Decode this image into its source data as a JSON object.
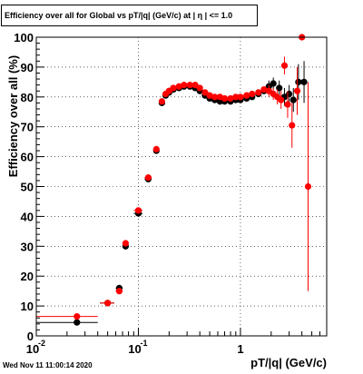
{
  "chart_data": {
    "type": "scatter",
    "title": "Efficiency over all for Global vs pT/|q| (GeV/c) at |  η | <= 1.0",
    "xlabel": "pT/|q| (GeV/c)",
    "ylabel": "Efficiency over all (%)",
    "x_scale": "log",
    "xlim": [
      0.01,
      7
    ],
    "ylim": [
      0,
      100
    ],
    "x_ticks": [
      {
        "value": 0.01,
        "label": "10",
        "exp": "-2"
      },
      {
        "value": 0.1,
        "label": "10",
        "exp": "-1"
      },
      {
        "value": 1,
        "label": "1",
        "exp": ""
      }
    ],
    "y_ticks": [
      0,
      10,
      20,
      30,
      40,
      50,
      60,
      70,
      80,
      90,
      100
    ],
    "grid": true,
    "series": [
      {
        "color": "#000000",
        "points": [
          {
            "x": 0.025,
            "y": 4.5,
            "xlo": 0.01,
            "xhi": 0.04,
            "ylo": 4.5,
            "yhi": 4.5
          },
          {
            "x": 0.05,
            "y": 11,
            "xlo": 0.042,
            "xhi": 0.058,
            "ylo": 10.5,
            "yhi": 11.5
          },
          {
            "x": 0.065,
            "y": 16,
            "xlo": 0.06,
            "xhi": 0.07,
            "ylo": 15,
            "yhi": 17
          },
          {
            "x": 0.075,
            "y": 30,
            "xlo": 0.07,
            "xhi": 0.08,
            "ylo": 29,
            "yhi": 31
          },
          {
            "x": 0.1,
            "y": 41,
            "xlo": 0.09,
            "xhi": 0.11,
            "ylo": 40,
            "yhi": 42
          },
          {
            "x": 0.125,
            "y": 52.5,
            "xlo": 0.115,
            "xhi": 0.135,
            "ylo": 51.5,
            "yhi": 53.5
          },
          {
            "x": 0.15,
            "y": 62,
            "xlo": 0.145,
            "xhi": 0.155,
            "ylo": 61,
            "yhi": 63
          },
          {
            "x": 0.17,
            "y": 78,
            "ylo": 77,
            "yhi": 79
          },
          {
            "x": 0.185,
            "y": 80.5
          },
          {
            "x": 0.2,
            "y": 81.5
          },
          {
            "x": 0.22,
            "y": 82.5
          },
          {
            "x": 0.25,
            "y": 83
          },
          {
            "x": 0.28,
            "y": 83.5
          },
          {
            "x": 0.32,
            "y": 83.5
          },
          {
            "x": 0.36,
            "y": 83
          },
          {
            "x": 0.4,
            "y": 82
          },
          {
            "x": 0.45,
            "y": 80.5
          },
          {
            "x": 0.5,
            "y": 79.5
          },
          {
            "x": 0.56,
            "y": 79
          },
          {
            "x": 0.63,
            "y": 78.5
          },
          {
            "x": 0.7,
            "y": 78.5
          },
          {
            "x": 0.8,
            "y": 78.5
          },
          {
            "x": 0.9,
            "y": 79
          },
          {
            "x": 1.0,
            "y": 79
          },
          {
            "x": 1.15,
            "y": 79.5
          },
          {
            "x": 1.3,
            "y": 80
          },
          {
            "x": 1.5,
            "y": 81
          },
          {
            "x": 1.7,
            "y": 82
          },
          {
            "x": 1.9,
            "y": 83.5,
            "ylo": 81.5,
            "yhi": 85.5
          },
          {
            "x": 2.1,
            "y": 84.5,
            "ylo": 82.5,
            "yhi": 86.5
          },
          {
            "x": 2.4,
            "y": 83,
            "ylo": 80.5,
            "yhi": 85.5
          },
          {
            "x": 2.7,
            "y": 80,
            "ylo": 77,
            "yhi": 83
          },
          {
            "x": 3.0,
            "y": 81,
            "ylo": 78,
            "yhi": 84
          },
          {
            "x": 3.3,
            "y": 79,
            "ylo": 75,
            "yhi": 83
          },
          {
            "x": 3.7,
            "y": 85,
            "ylo": 79,
            "yhi": 91
          },
          {
            "x": 4.2,
            "y": 85,
            "ylo": 78,
            "yhi": 92
          }
        ]
      },
      {
        "color": "#ff0000",
        "points": [
          {
            "x": 0.025,
            "y": 6.5,
            "xlo": 0.01,
            "xhi": 0.04,
            "ylo": 6,
            "yhi": 7
          },
          {
            "x": 0.05,
            "y": 11,
            "xlo": 0.042,
            "xhi": 0.058,
            "ylo": 10.5,
            "yhi": 11.5
          },
          {
            "x": 0.065,
            "y": 15,
            "xlo": 0.06,
            "xhi": 0.07,
            "ylo": 14,
            "yhi": 16
          },
          {
            "x": 0.075,
            "y": 31,
            "xlo": 0.07,
            "xhi": 0.08,
            "ylo": 30,
            "yhi": 32
          },
          {
            "x": 0.1,
            "y": 42,
            "xlo": 0.09,
            "xhi": 0.11,
            "ylo": 41,
            "yhi": 43
          },
          {
            "x": 0.125,
            "y": 53,
            "xlo": 0.115,
            "xhi": 0.135,
            "ylo": 52,
            "yhi": 54
          },
          {
            "x": 0.15,
            "y": 62.5,
            "xlo": 0.145,
            "xhi": 0.155,
            "ylo": 61.5,
            "yhi": 63.5
          },
          {
            "x": 0.17,
            "y": 78.5,
            "ylo": 77.5,
            "yhi": 79.5
          },
          {
            "x": 0.185,
            "y": 81
          },
          {
            "x": 0.2,
            "y": 82
          },
          {
            "x": 0.22,
            "y": 83
          },
          {
            "x": 0.25,
            "y": 83.5
          },
          {
            "x": 0.28,
            "y": 84
          },
          {
            "x": 0.32,
            "y": 84
          },
          {
            "x": 0.36,
            "y": 84
          },
          {
            "x": 0.4,
            "y": 83
          },
          {
            "x": 0.45,
            "y": 81.5
          },
          {
            "x": 0.5,
            "y": 80.5
          },
          {
            "x": 0.56,
            "y": 80
          },
          {
            "x": 0.63,
            "y": 80
          },
          {
            "x": 0.7,
            "y": 79.5
          },
          {
            "x": 0.8,
            "y": 79.5
          },
          {
            "x": 0.9,
            "y": 80
          },
          {
            "x": 1.0,
            "y": 80
          },
          {
            "x": 1.15,
            "y": 80.5
          },
          {
            "x": 1.3,
            "y": 81
          },
          {
            "x": 1.5,
            "y": 81.5
          },
          {
            "x": 1.7,
            "y": 82.5
          },
          {
            "x": 1.9,
            "y": 82,
            "ylo": 80,
            "yhi": 84
          },
          {
            "x": 2.1,
            "y": 81,
            "ylo": 79,
            "yhi": 83
          },
          {
            "x": 2.3,
            "y": 80,
            "ylo": 77.5,
            "yhi": 82.5
          },
          {
            "x": 2.5,
            "y": 79,
            "ylo": 76,
            "yhi": 82
          },
          {
            "x": 2.7,
            "y": 90.5,
            "ylo": 87.5,
            "yhi": 93.5
          },
          {
            "x": 2.9,
            "y": 77.5,
            "ylo": 73,
            "yhi": 82
          },
          {
            "x": 3.2,
            "y": 70.5,
            "ylo": 63,
            "yhi": 78
          },
          {
            "x": 3.6,
            "y": 82,
            "ylo": 74,
            "yhi": 90
          },
          {
            "x": 4.0,
            "y": 100,
            "ylo": 100,
            "yhi": 100
          },
          {
            "x": 4.6,
            "y": 50,
            "ylo": 15,
            "yhi": 85
          }
        ]
      }
    ]
  },
  "footer": {
    "timestamp": "Wed Nov 11 11:00:14 2020"
  }
}
